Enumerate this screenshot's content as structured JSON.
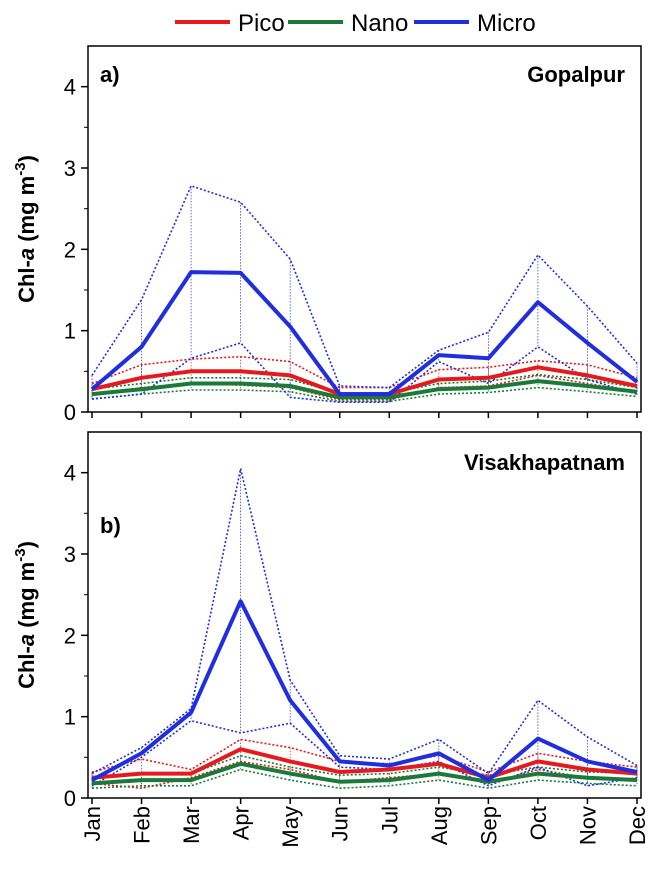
{
  "legend": {
    "entries": [
      {
        "name": "Pico",
        "color": "#e41a1c"
      },
      {
        "name": "Nano",
        "color": "#1b7a3a"
      },
      {
        "name": "Micro",
        "color": "#1f2fe0"
      }
    ]
  },
  "chart_data": [
    {
      "type": "line",
      "panel_label": "a)",
      "title": "Gopalpur",
      "ylabel_prefix": "Chl-",
      "ylabel_italic": "a",
      "ylabel_unit": " (mg m",
      "ylabel_sup": "-3",
      "ylabel_close": ")",
      "ylim": [
        0,
        4.5
      ],
      "yticks": [
        0,
        1,
        2,
        3,
        4
      ],
      "categories": [
        "Jan",
        "Feb",
        "Mar",
        "Apr",
        "May",
        "Jun",
        "Jul",
        "Aug",
        "Sep",
        "Oct",
        "Nov",
        "Dec"
      ],
      "series": [
        {
          "name": "Pico",
          "color": "#e41a1c",
          "values": [
            0.28,
            0.42,
            0.5,
            0.5,
            0.45,
            0.22,
            0.22,
            0.4,
            0.42,
            0.55,
            0.45,
            0.32
          ],
          "upper": [
            0.35,
            0.58,
            0.65,
            0.68,
            0.62,
            0.3,
            0.3,
            0.52,
            0.55,
            0.63,
            0.58,
            0.42
          ],
          "lower": [
            0.22,
            0.3,
            0.35,
            0.33,
            0.3,
            0.15,
            0.15,
            0.3,
            0.32,
            0.45,
            0.35,
            0.25
          ]
        },
        {
          "name": "Nano",
          "color": "#1b7a3a",
          "values": [
            0.22,
            0.28,
            0.35,
            0.35,
            0.32,
            0.18,
            0.18,
            0.28,
            0.3,
            0.38,
            0.32,
            0.25
          ],
          "upper": [
            0.28,
            0.35,
            0.42,
            0.42,
            0.4,
            0.23,
            0.23,
            0.35,
            0.38,
            0.46,
            0.4,
            0.3
          ],
          "lower": [
            0.16,
            0.22,
            0.27,
            0.27,
            0.25,
            0.13,
            0.13,
            0.22,
            0.24,
            0.3,
            0.25,
            0.19
          ]
        },
        {
          "name": "Micro",
          "color": "#1f2fe0",
          "values": [
            0.28,
            0.8,
            1.72,
            1.71,
            1.05,
            0.22,
            0.22,
            0.7,
            0.66,
            1.35,
            0.85,
            0.37
          ],
          "upper": [
            0.45,
            1.38,
            2.78,
            2.58,
            1.88,
            0.32,
            0.3,
            0.76,
            0.98,
            1.93,
            1.3,
            0.6
          ],
          "lower": [
            0.16,
            0.22,
            0.66,
            0.85,
            0.18,
            0.12,
            0.12,
            0.62,
            0.35,
            0.8,
            0.4,
            0.22
          ]
        }
      ]
    },
    {
      "type": "line",
      "panel_label": "b)",
      "title": "Visakhapatnam",
      "ylabel_prefix": "Chl-",
      "ylabel_italic": "a",
      "ylabel_unit": " (mg m",
      "ylabel_sup": "-3",
      "ylabel_close": ")",
      "ylim": [
        0,
        4.5
      ],
      "yticks": [
        0,
        1,
        2,
        3,
        4
      ],
      "categories": [
        "Jan",
        "Feb",
        "Mar",
        "Apr",
        "May",
        "Jun",
        "Jul",
        "Aug",
        "Sep",
        "Oct",
        "Nov",
        "Dec"
      ],
      "series": [
        {
          "name": "Pico",
          "color": "#e41a1c",
          "values": [
            0.25,
            0.3,
            0.3,
            0.6,
            0.45,
            0.32,
            0.35,
            0.42,
            0.25,
            0.45,
            0.35,
            0.3
          ],
          "upper": [
            0.32,
            0.48,
            0.35,
            0.72,
            0.62,
            0.45,
            0.42,
            0.52,
            0.32,
            0.55,
            0.45,
            0.38
          ],
          "lower": [
            0.18,
            0.12,
            0.25,
            0.45,
            0.35,
            0.2,
            0.25,
            0.3,
            0.18,
            0.35,
            0.25,
            0.22
          ]
        },
        {
          "name": "Nano",
          "color": "#1b7a3a",
          "values": [
            0.18,
            0.22,
            0.22,
            0.42,
            0.3,
            0.2,
            0.22,
            0.3,
            0.2,
            0.3,
            0.25,
            0.22
          ],
          "upper": [
            0.25,
            0.3,
            0.3,
            0.52,
            0.38,
            0.28,
            0.3,
            0.38,
            0.28,
            0.38,
            0.32,
            0.3
          ],
          "lower": [
            0.12,
            0.15,
            0.15,
            0.35,
            0.22,
            0.12,
            0.15,
            0.22,
            0.12,
            0.22,
            0.18,
            0.15
          ]
        },
        {
          "name": "Micro",
          "color": "#1f2fe0",
          "values": [
            0.22,
            0.55,
            1.05,
            2.42,
            1.2,
            0.45,
            0.4,
            0.55,
            0.22,
            0.73,
            0.45,
            0.32
          ],
          "upper": [
            0.3,
            0.62,
            1.1,
            4.05,
            1.45,
            0.52,
            0.48,
            0.72,
            0.3,
            1.2,
            0.75,
            0.4
          ],
          "lower": [
            0.15,
            0.5,
            0.95,
            0.8,
            0.92,
            0.38,
            0.35,
            0.45,
            0.15,
            0.38,
            0.15,
            0.25
          ]
        }
      ]
    }
  ]
}
